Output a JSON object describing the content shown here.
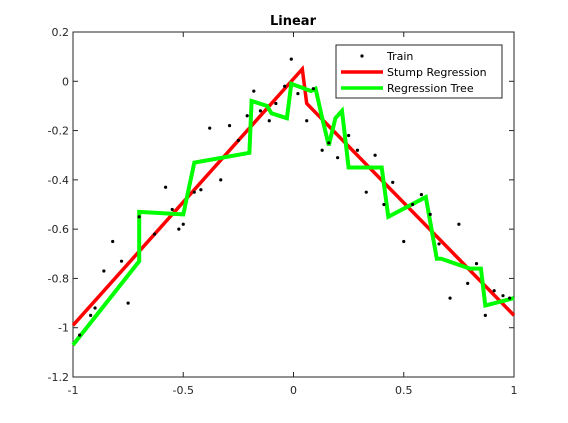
{
  "chart_data": {
    "type": "line",
    "title": "Linear",
    "xlabel": "",
    "ylabel": "",
    "xlim": [
      -1,
      1
    ],
    "ylim": [
      -1.2,
      0.2
    ],
    "xticks": [
      -1,
      -0.5,
      0,
      0.5,
      1
    ],
    "yticks": [
      -1.2,
      -1,
      -0.8,
      -0.6,
      -0.4,
      -0.2,
      0,
      0.2
    ],
    "xtick_labels": [
      "-1",
      "-0.5",
      "0",
      "0.5",
      "1"
    ],
    "ytick_labels": [
      "-1.2",
      "-1",
      "-0.8",
      "-0.6",
      "-0.4",
      "-0.2",
      "0",
      "0.2"
    ],
    "grid": false,
    "legend_position": "top-right",
    "series": [
      {
        "name": "Train",
        "kind": "scatter",
        "color": "#000000",
        "x": [
          -0.97,
          -0.92,
          -0.9,
          -0.86,
          -0.82,
          -0.78,
          -0.75,
          -0.7,
          -0.63,
          -0.58,
          -0.55,
          -0.52,
          -0.5,
          -0.45,
          -0.42,
          -0.38,
          -0.33,
          -0.29,
          -0.25,
          -0.21,
          -0.18,
          -0.15,
          -0.11,
          -0.08,
          -0.04,
          -0.01,
          0.02,
          0.06,
          0.09,
          0.13,
          0.16,
          0.2,
          0.25,
          0.29,
          0.33,
          0.37,
          0.41,
          0.45,
          0.5,
          0.54,
          0.58,
          0.62,
          0.66,
          0.71,
          0.75,
          0.79,
          0.83,
          0.87,
          0.91,
          0.95,
          0.98
        ],
        "y": [
          -1.03,
          -0.95,
          -0.92,
          -0.77,
          -0.65,
          -0.73,
          -0.9,
          -0.55,
          -0.62,
          -0.43,
          -0.52,
          -0.6,
          -0.58,
          -0.45,
          -0.44,
          -0.19,
          -0.4,
          -0.18,
          -0.24,
          -0.14,
          -0.04,
          -0.12,
          -0.16,
          -0.09,
          -0.02,
          0.09,
          -0.05,
          -0.16,
          -0.03,
          -0.28,
          -0.25,
          -0.31,
          -0.22,
          -0.28,
          -0.45,
          -0.3,
          -0.5,
          -0.41,
          -0.65,
          -0.5,
          -0.46,
          -0.54,
          -0.66,
          -0.88,
          -0.58,
          -0.82,
          -0.74,
          -0.95,
          -0.85,
          -0.87,
          -0.88
        ]
      },
      {
        "name": "Stump Regression",
        "kind": "line",
        "color": "#ff0000",
        "x": [
          -1,
          0.04,
          0.06,
          1
        ],
        "y": [
          -0.99,
          0.05,
          -0.09,
          -0.95
        ]
      },
      {
        "name": "Regression Tree",
        "kind": "line",
        "color": "#00ff00",
        "x": [
          -1,
          -0.7,
          -0.7,
          -0.5,
          -0.45,
          -0.2,
          -0.19,
          -0.12,
          -0.1,
          -0.03,
          -0.01,
          0.08,
          0.1,
          0.13,
          0.16,
          0.19,
          0.22,
          0.25,
          0.4,
          0.43,
          0.6,
          0.65,
          0.67,
          0.8,
          0.85,
          0.87,
          1
        ],
        "y": [
          -1.07,
          -0.73,
          -0.53,
          -0.54,
          -0.33,
          -0.29,
          -0.08,
          -0.1,
          -0.13,
          -0.15,
          -0.01,
          -0.04,
          -0.03,
          -0.15,
          -0.26,
          -0.15,
          -0.12,
          -0.35,
          -0.35,
          -0.55,
          -0.47,
          -0.72,
          -0.72,
          -0.76,
          -0.76,
          -0.91,
          -0.88
        ]
      }
    ]
  }
}
